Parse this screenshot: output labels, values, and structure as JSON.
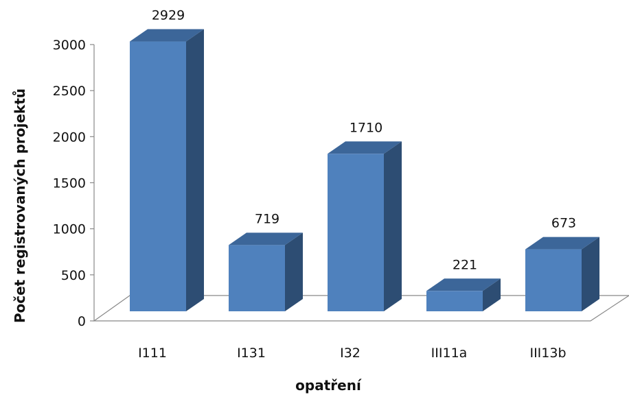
{
  "chart_data": {
    "type": "bar",
    "style": "3d-column",
    "categories": [
      "I111",
      "I131",
      "I32",
      "III11a",
      "III13b"
    ],
    "values": [
      2929,
      719,
      1710,
      221,
      673
    ],
    "data_labels": [
      "2929",
      "719",
      "1710",
      "221",
      "673"
    ],
    "title": "",
    "xlabel": "opatření",
    "ylabel": "Počet registrovaných projektů",
    "ylim": [
      0,
      3000
    ],
    "yticks": [
      0,
      500,
      1000,
      1500,
      2000,
      2500,
      3000
    ],
    "grid": false,
    "legend": "none",
    "colors": {
      "bar_front": "#4f81bd",
      "bar_side": "#2d4d73",
      "bar_top": "#3c6699",
      "axis": "#888888"
    }
  }
}
